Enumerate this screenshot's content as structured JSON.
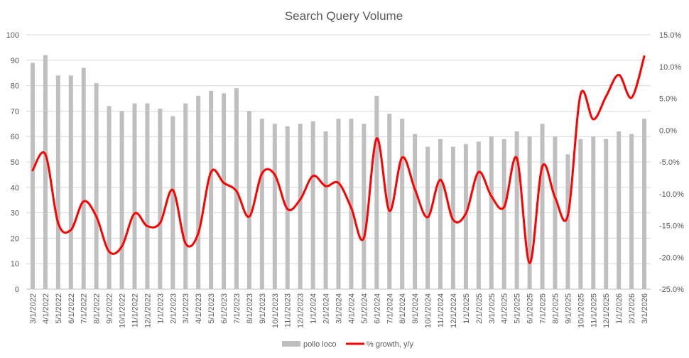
{
  "chart_data": {
    "type": "bar",
    "title": "Search Query Volume",
    "xlabel": "",
    "ylabel": "",
    "categories": [
      "3/1/2022",
      "4/1/2022",
      "5/1/2022",
      "6/1/2022",
      "7/1/2022",
      "8/1/2022",
      "9/1/2022",
      "10/1/2022",
      "11/1/2022",
      "12/1/2022",
      "1/1/2023",
      "2/1/2023",
      "3/1/2023",
      "4/1/2023",
      "5/1/2023",
      "6/1/2023",
      "7/1/2023",
      "8/1/2023",
      "9/1/2023",
      "10/1/2023",
      "11/1/2023",
      "12/1/2023",
      "1/1/2024",
      "2/1/2024",
      "3/1/2024",
      "4/1/2024",
      "5/1/2024",
      "6/1/2024",
      "7/1/2024",
      "8/1/2024",
      "9/1/2024",
      "10/1/2024",
      "11/1/2024",
      "12/1/2024",
      "1/1/2025",
      "2/1/2025",
      "3/1/2025",
      "4/1/2025",
      "5/1/2025",
      "6/1/2025",
      "7/1/2025",
      "8/1/2025",
      "9/1/2025",
      "10/1/2025",
      "11/1/2025",
      "12/1/2025",
      "1/1/2026",
      "2/1/2026",
      "3/1/2026"
    ],
    "x_tick_labels": [
      "3/1/2022",
      "4/1/2022",
      "5/1/2022",
      "6/1/2022",
      "7/1/2022",
      "8/1/2022",
      "9/1/2022",
      "10/1/2022",
      "11/1/2022",
      "12/1/2022",
      "1/1/2023",
      "2/1/2023",
      "3/1/2023",
      "4/1/2023",
      "5/1/2023",
      "6/1/2023",
      "7/1/2023",
      "8/1/2023",
      "9/1/2023",
      "10/1/2023",
      "11/1/2023",
      "12/1/2023",
      "1/1/2024",
      "2/1/2024",
      "3/1/2024",
      "4/1/2024",
      "5/1/2024",
      "6/1/2024",
      "7/1/2024",
      "8/1/2024",
      "9/1/2024",
      "10/1/2024",
      "11/1/2024",
      "12/1/2024",
      "1/1/2025",
      "2/1/2025",
      "3/1/2025",
      "4/1/2025",
      "5/1/2025",
      "6/1/2025",
      "7/1/2025",
      "8/1/2025",
      "9/1/2025",
      "10/1/2025",
      "11/1/2025",
      "12/1/2025",
      "1/1/2026",
      "2/1/2026",
      "3/1/2026"
    ],
    "y_left": {
      "min": 0,
      "max": 100,
      "step": 10,
      "tick_labels": [
        "0",
        "10",
        "20",
        "30",
        "40",
        "50",
        "60",
        "70",
        "80",
        "90",
        "100"
      ]
    },
    "y_right": {
      "min": -25,
      "max": 15,
      "step": 5,
      "tick_labels": [
        "-25.0%",
        "-20.0%",
        "-15.0%",
        "-10.0%",
        "-5.0%",
        "0.0%",
        "5.0%",
        "10.0%",
        "15.0%"
      ]
    },
    "grid": true,
    "legend_position": "bottom",
    "series": [
      {
        "name": "pollo loco",
        "type": "bar",
        "axis": "left",
        "color": "#bfbfbf",
        "values": [
          89,
          92,
          84,
          84,
          87,
          81,
          72,
          70,
          73,
          73,
          71,
          68,
          73,
          76,
          78,
          77,
          79,
          70,
          67,
          65,
          64,
          65,
          66,
          62,
          67,
          67,
          65,
          76,
          69,
          67,
          61,
          56,
          59,
          56,
          57,
          58,
          60,
          59,
          62,
          60,
          65,
          60,
          53,
          59,
          60,
          59,
          62,
          61,
          67
        ]
      },
      {
        "name": "% growth, y/y",
        "type": "line",
        "axis": "right",
        "color": "#ff0000",
        "values": [
          -6.3,
          -3.8,
          -14.6,
          -15.7,
          -11.2,
          -13.6,
          -19.1,
          -18.3,
          -13.1,
          -15.1,
          -14.6,
          -9.4,
          -17.8,
          -16.2,
          -6.6,
          -8.3,
          -9.6,
          -13.6,
          -6.8,
          -7.0,
          -12.4,
          -10.9,
          -7.2,
          -8.8,
          -8.3,
          -12.2,
          -16.9,
          -1.3,
          -12.7,
          -4.3,
          -9.3,
          -13.7,
          -7.8,
          -14.1,
          -13.1,
          -6.6,
          -10.4,
          -12.1,
          -4.4,
          -20.9,
          -5.7,
          -10.6,
          -13.4,
          5.6,
          1.7,
          5.3,
          8.7,
          5.1,
          11.6
        ]
      }
    ]
  }
}
